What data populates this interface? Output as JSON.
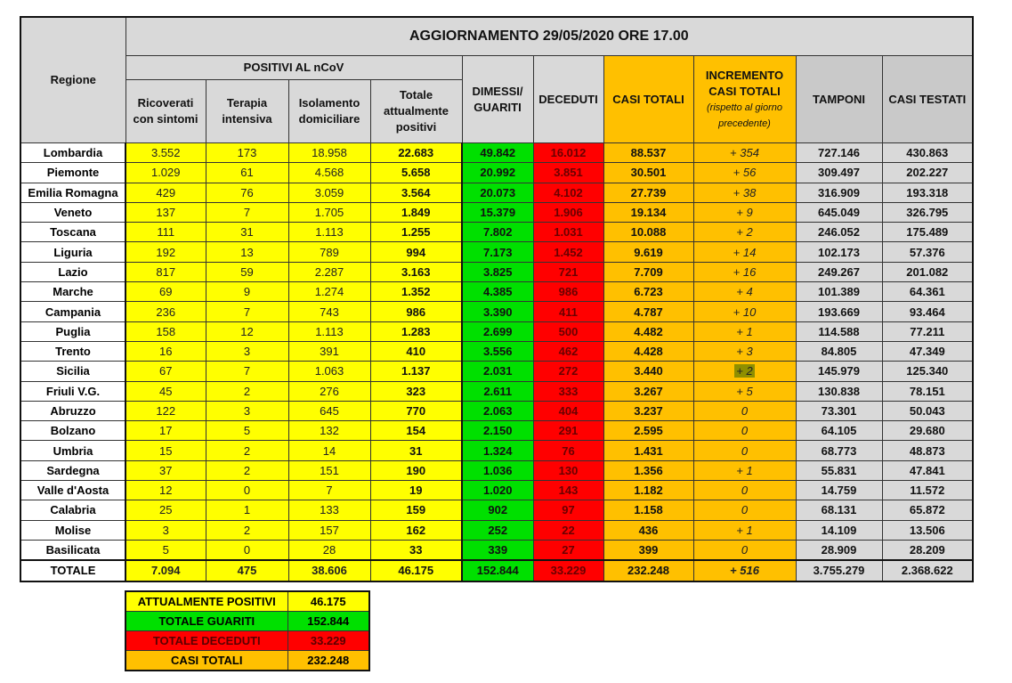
{
  "header": {
    "regione": "Regione",
    "title": "AGGIORNAMENTO 29/05/2020 ORE 17.00",
    "positivi_group": "POSITIVI AL nCoV",
    "ricoverati": "Ricoverati con sintomi",
    "terapia": "Terapia intensiva",
    "isolamento": "Isolamento domiciliare",
    "totale_positivi": "Totale attualmente positivi",
    "dimessi": "DIMESSI/ GUARITI",
    "deceduti": "DECEDUTI",
    "casi_totali": "CASI TOTALI",
    "incremento": "INCREMENTO CASI  TOTALI",
    "incremento_note": "(rispetto al giorno precedente)",
    "tamponi": "TAMPONI",
    "casi_testati": "CASI TESTATI"
  },
  "colors": {
    "positivi": "#ffff00",
    "guariti": "#00e000",
    "deceduti": "#ff0000",
    "casi_totali": "#ffc000",
    "tamponi": "#d9d9d9"
  },
  "rows": [
    [
      "Lombardia",
      "3.552",
      "173",
      "18.958",
      "22.683",
      "49.842",
      "16.012",
      "88.537",
      "+ 354",
      "727.146",
      "430.863"
    ],
    [
      "Piemonte",
      "1.029",
      "61",
      "4.568",
      "5.658",
      "20.992",
      "3.851",
      "30.501",
      "+ 56",
      "309.497",
      "202.227"
    ],
    [
      "Emilia Romagna",
      "429",
      "76",
      "3.059",
      "3.564",
      "20.073",
      "4.102",
      "27.739",
      "+ 38",
      "316.909",
      "193.318"
    ],
    [
      "Veneto",
      "137",
      "7",
      "1.705",
      "1.849",
      "15.379",
      "1.906",
      "19.134",
      "+ 9",
      "645.049",
      "326.795"
    ],
    [
      "Toscana",
      "111",
      "31",
      "1.113",
      "1.255",
      "7.802",
      "1.031",
      "10.088",
      "+ 2",
      "246.052",
      "175.489"
    ],
    [
      "Liguria",
      "192",
      "13",
      "789",
      "994",
      "7.173",
      "1.452",
      "9.619",
      "+ 14",
      "102.173",
      "57.376"
    ],
    [
      "Lazio",
      "817",
      "59",
      "2.287",
      "3.163",
      "3.825",
      "721",
      "7.709",
      "+ 16",
      "249.267",
      "201.082"
    ],
    [
      "Marche",
      "69",
      "9",
      "1.274",
      "1.352",
      "4.385",
      "986",
      "6.723",
      "+ 4",
      "101.389",
      "64.361"
    ],
    [
      "Campania",
      "236",
      "7",
      "743",
      "986",
      "3.390",
      "411",
      "4.787",
      "+ 10",
      "193.669",
      "93.464"
    ],
    [
      "Puglia",
      "158",
      "12",
      "1.113",
      "1.283",
      "2.699",
      "500",
      "4.482",
      "+ 1",
      "114.588",
      "77.211"
    ],
    [
      "Trento",
      "16",
      "3",
      "391",
      "410",
      "3.556",
      "462",
      "4.428",
      "+ 3",
      "84.805",
      "47.349"
    ],
    [
      "Sicilia",
      "67",
      "7",
      "1.063",
      "1.137",
      "2.031",
      "272",
      "3.440",
      "+ 2",
      "145.979",
      "125.340"
    ],
    [
      "Friuli V.G.",
      "45",
      "2",
      "276",
      "323",
      "2.611",
      "333",
      "3.267",
      "+ 5",
      "130.838",
      "78.151"
    ],
    [
      "Abruzzo",
      "122",
      "3",
      "645",
      "770",
      "2.063",
      "404",
      "3.237",
      "0",
      "73.301",
      "50.043"
    ],
    [
      "Bolzano",
      "17",
      "5",
      "132",
      "154",
      "2.150",
      "291",
      "2.595",
      "0",
      "64.105",
      "29.680"
    ],
    [
      "Umbria",
      "15",
      "2",
      "14",
      "31",
      "1.324",
      "76",
      "1.431",
      "0",
      "68.773",
      "48.873"
    ],
    [
      "Sardegna",
      "37",
      "2",
      "151",
      "190",
      "1.036",
      "130",
      "1.356",
      "+ 1",
      "55.831",
      "47.841"
    ],
    [
      "Valle d'Aosta",
      "12",
      "0",
      "7",
      "19",
      "1.020",
      "143",
      "1.182",
      "0",
      "14.759",
      "11.572"
    ],
    [
      "Calabria",
      "25",
      "1",
      "133",
      "159",
      "902",
      "97",
      "1.158",
      "0",
      "68.131",
      "65.872"
    ],
    [
      "Molise",
      "3",
      "2",
      "157",
      "162",
      "252",
      "22",
      "436",
      "+ 1",
      "14.109",
      "13.506"
    ],
    [
      "Basilicata",
      "5",
      "0",
      "28",
      "33",
      "339",
      "27",
      "399",
      "0",
      "28.909",
      "28.209"
    ]
  ],
  "totale": [
    "TOTALE",
    "7.094",
    "475",
    "38.606",
    "46.175",
    "152.844",
    "33.229",
    "232.248",
    "+ 516",
    "3.755.279",
    "2.368.622"
  ],
  "summary": [
    {
      "label": "ATTUALMENTE POSITIVI",
      "value": "46.175",
      "color": "#ffff00"
    },
    {
      "label": "TOTALE GUARITI",
      "value": "152.844",
      "color": "#00e000"
    },
    {
      "label": "TOTALE DECEDUTI",
      "value": "33.229",
      "color": "#ff0000"
    },
    {
      "label": "CASI TOTALI",
      "value": "232.248",
      "color": "#ffc000"
    }
  ]
}
